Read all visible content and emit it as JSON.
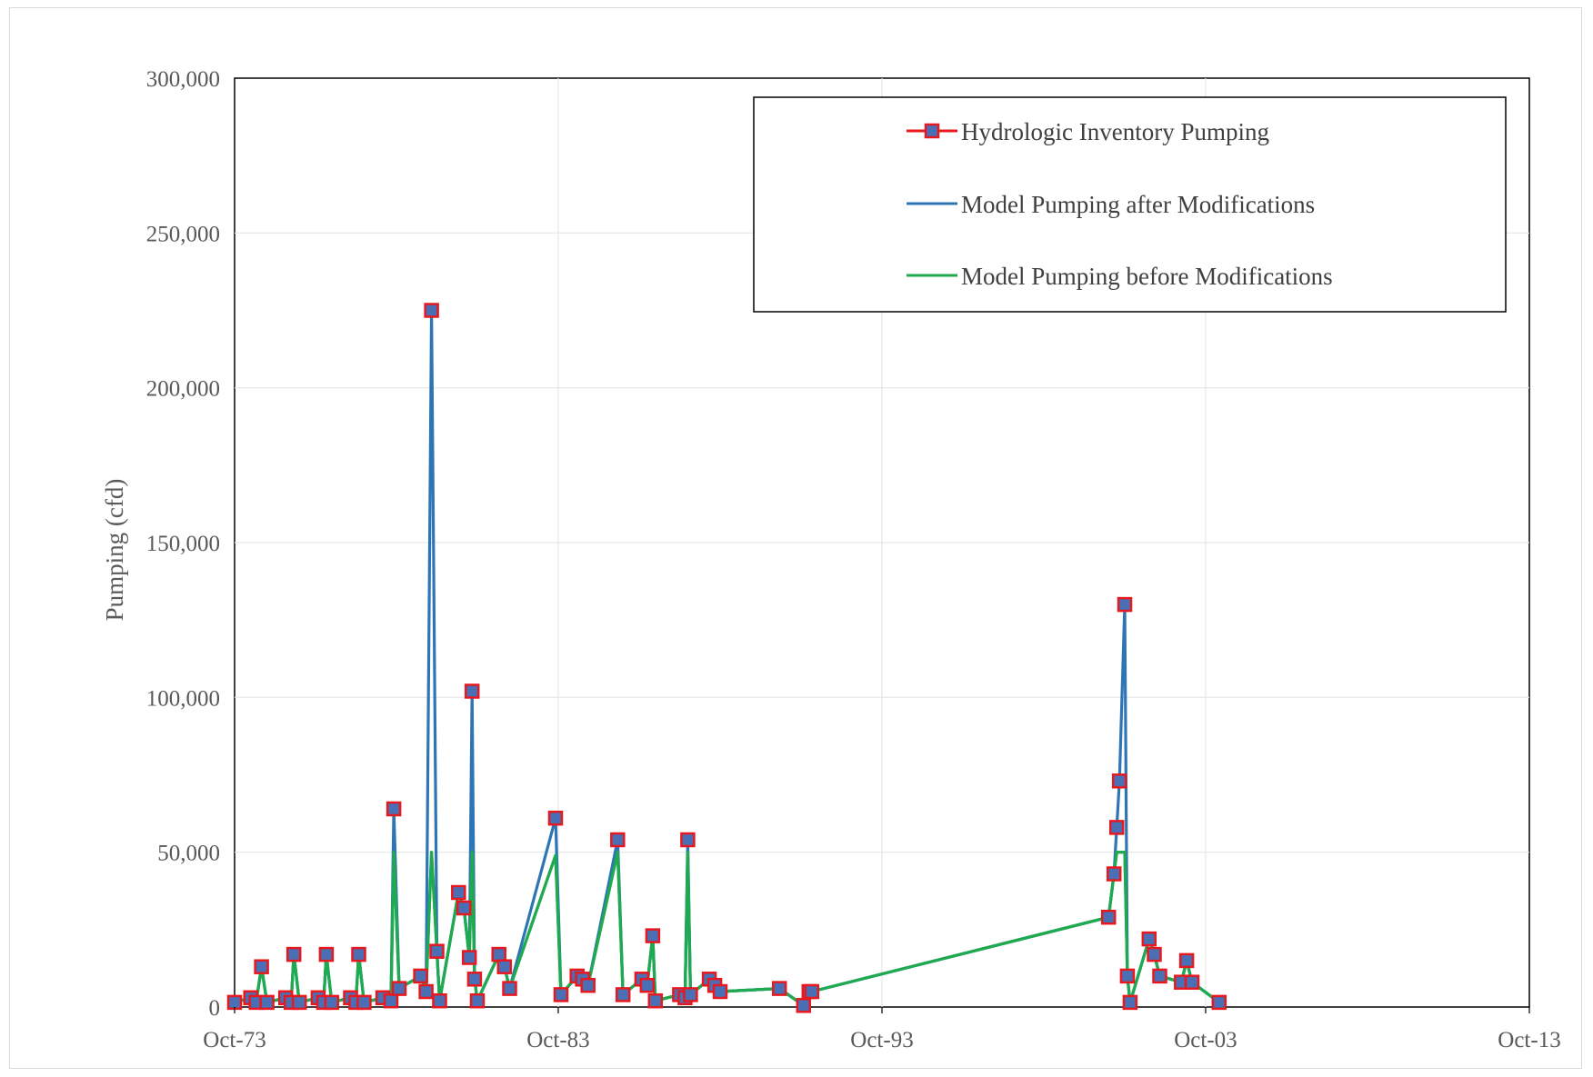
{
  "chart_data": {
    "type": "line",
    "title": "",
    "xlabel": "",
    "ylabel": "Pumping (cfd)",
    "xlim": [
      "1973-10-01",
      "2013-10-01"
    ],
    "ylim": [
      0,
      300000
    ],
    "x_tick_labels": [
      "Oct-73",
      "Oct-83",
      "Oct-93",
      "Oct-03",
      "Oct-13"
    ],
    "x_ticks": [
      "1973-10-01",
      "1983-10-01",
      "1993-10-01",
      "2003-10-01",
      "2013-10-01"
    ],
    "y_tick_labels": [
      "0",
      "50,000",
      "100,000",
      "150,000",
      "200,000",
      "250,000",
      "300,000"
    ],
    "y_ticks": [
      0,
      50000,
      100000,
      150000,
      200000,
      250000,
      300000
    ],
    "grid": true,
    "legend_position": "top-right",
    "series": [
      {
        "name": "Hydrologic Inventory Pumping",
        "color": "#4a6fb5",
        "marker_edge": "#e8191e",
        "marker": "square",
        "points": [
          [
            "1973-10-01",
            1500
          ],
          [
            "1974-04-01",
            3000
          ],
          [
            "1974-06-01",
            1500
          ],
          [
            "1974-08-01",
            13000
          ],
          [
            "1974-10-01",
            1500
          ],
          [
            "1975-05-01",
            3000
          ],
          [
            "1975-07-01",
            1500
          ],
          [
            "1975-08-01",
            17000
          ],
          [
            "1975-10-01",
            1500
          ],
          [
            "1976-05-01",
            3000
          ],
          [
            "1976-07-01",
            1500
          ],
          [
            "1976-08-01",
            17000
          ],
          [
            "1976-10-01",
            1500
          ],
          [
            "1977-05-01",
            3000
          ],
          [
            "1977-07-01",
            1500
          ],
          [
            "1977-08-01",
            17000
          ],
          [
            "1977-10-01",
            1500
          ],
          [
            "1978-05-01",
            3000
          ],
          [
            "1978-08-01",
            2000
          ],
          [
            "1978-09-01",
            64000
          ],
          [
            "1978-11-01",
            6000
          ],
          [
            "1979-07-01",
            10000
          ],
          [
            "1979-09-01",
            5000
          ],
          [
            "1979-11-01",
            225000
          ],
          [
            "1980-01-01",
            18000
          ],
          [
            "1980-02-01",
            2000
          ],
          [
            "1980-09-01",
            37000
          ],
          [
            "1980-11-01",
            32000
          ],
          [
            "1981-01-01",
            16000
          ],
          [
            "1981-02-01",
            102000
          ],
          [
            "1981-03-01",
            9000
          ],
          [
            "1981-04-01",
            2000
          ],
          [
            "1981-12-01",
            17000
          ],
          [
            "1982-02-01",
            13000
          ],
          [
            "1982-04-01",
            6000
          ],
          [
            "1983-09-01",
            61000
          ],
          [
            "1983-11-01",
            4000
          ],
          [
            "1984-05-01",
            10000
          ],
          [
            "1984-07-01",
            9000
          ],
          [
            "1984-09-01",
            7000
          ],
          [
            "1985-08-01",
            54000
          ],
          [
            "1985-10-01",
            4000
          ],
          [
            "1986-05-01",
            9000
          ],
          [
            "1986-07-01",
            7000
          ],
          [
            "1986-09-01",
            23000
          ],
          [
            "1986-10-01",
            2000
          ],
          [
            "1987-07-01",
            4000
          ],
          [
            "1987-09-01",
            3000
          ],
          [
            "1987-10-01",
            54000
          ],
          [
            "1987-11-01",
            4000
          ],
          [
            "1988-06-01",
            9000
          ],
          [
            "1988-08-01",
            7000
          ],
          [
            "1988-10-01",
            5000
          ],
          [
            "1990-08-01",
            6000
          ],
          [
            "1991-05-01",
            500
          ],
          [
            "1991-07-01",
            5000
          ],
          [
            "1991-08-01",
            5000
          ],
          [
            "2000-10-01",
            29000
          ],
          [
            "2000-12-01",
            43000
          ],
          [
            "2001-01-01",
            58000
          ],
          [
            "2001-02-01",
            73000
          ],
          [
            "2001-04-01",
            130000
          ],
          [
            "2001-05-01",
            10000
          ],
          [
            "2001-06-01",
            1500
          ],
          [
            "2002-01-01",
            22000
          ],
          [
            "2002-03-01",
            17000
          ],
          [
            "2002-05-01",
            10000
          ],
          [
            "2003-01-01",
            8000
          ],
          [
            "2003-03-01",
            15000
          ],
          [
            "2003-05-01",
            8000
          ],
          [
            "2004-03-01",
            1500
          ]
        ]
      },
      {
        "name": "Model Pumping after Modifications",
        "color": "#2e75b6",
        "points": [
          [
            "1973-10-01",
            1500
          ],
          [
            "1974-04-01",
            3000
          ],
          [
            "1974-06-01",
            1500
          ],
          [
            "1974-08-01",
            13000
          ],
          [
            "1974-10-01",
            1500
          ],
          [
            "1975-05-01",
            3000
          ],
          [
            "1975-07-01",
            1500
          ],
          [
            "1975-08-01",
            17000
          ],
          [
            "1975-10-01",
            1500
          ],
          [
            "1976-05-01",
            3000
          ],
          [
            "1976-07-01",
            1500
          ],
          [
            "1976-08-01",
            17000
          ],
          [
            "1976-10-01",
            1500
          ],
          [
            "1977-05-01",
            3000
          ],
          [
            "1977-07-01",
            1500
          ],
          [
            "1977-08-01",
            17000
          ],
          [
            "1977-10-01",
            1500
          ],
          [
            "1978-05-01",
            3000
          ],
          [
            "1978-08-01",
            2000
          ],
          [
            "1978-09-01",
            64000
          ],
          [
            "1978-11-01",
            6000
          ],
          [
            "1979-07-01",
            10000
          ],
          [
            "1979-09-01",
            5000
          ],
          [
            "1979-11-01",
            225000
          ],
          [
            "1980-01-01",
            18000
          ],
          [
            "1980-02-01",
            2000
          ],
          [
            "1980-09-01",
            37000
          ],
          [
            "1980-11-01",
            32000
          ],
          [
            "1981-01-01",
            16000
          ],
          [
            "1981-02-01",
            102000
          ],
          [
            "1981-03-01",
            9000
          ],
          [
            "1981-04-01",
            2000
          ],
          [
            "1981-12-01",
            17000
          ],
          [
            "1982-02-01",
            13000
          ],
          [
            "1982-04-01",
            6000
          ],
          [
            "1983-09-01",
            61000
          ],
          [
            "1983-11-01",
            4000
          ],
          [
            "1984-05-01",
            10000
          ],
          [
            "1984-07-01",
            9000
          ],
          [
            "1984-09-01",
            7000
          ],
          [
            "1985-08-01",
            54000
          ],
          [
            "1985-10-01",
            4000
          ],
          [
            "1986-05-01",
            9000
          ],
          [
            "1986-07-01",
            7000
          ],
          [
            "1986-09-01",
            23000
          ],
          [
            "1986-10-01",
            2000
          ],
          [
            "1987-07-01",
            4000
          ],
          [
            "1987-09-01",
            3000
          ],
          [
            "1987-10-01",
            54000
          ],
          [
            "1987-11-01",
            4000
          ],
          [
            "1988-06-01",
            9000
          ],
          [
            "1988-08-01",
            7000
          ],
          [
            "1988-10-01",
            5000
          ],
          [
            "1990-08-01",
            6000
          ],
          [
            "1991-05-01",
            500
          ],
          [
            "1991-07-01",
            5000
          ],
          [
            "1991-08-01",
            5000
          ],
          [
            "2000-10-01",
            29000
          ],
          [
            "2000-12-01",
            43000
          ],
          [
            "2001-01-01",
            58000
          ],
          [
            "2001-02-01",
            73000
          ],
          [
            "2001-04-01",
            130000
          ],
          [
            "2001-05-01",
            10000
          ],
          [
            "2001-06-01",
            1500
          ],
          [
            "2002-01-01",
            22000
          ],
          [
            "2002-03-01",
            17000
          ],
          [
            "2002-05-01",
            10000
          ],
          [
            "2003-01-01",
            8000
          ],
          [
            "2003-03-01",
            15000
          ],
          [
            "2003-05-01",
            8000
          ],
          [
            "2004-03-01",
            1500
          ]
        ]
      },
      {
        "name": "Model Pumping before Modifications",
        "color": "#1faa4f",
        "points": [
          [
            "1973-10-01",
            1500
          ],
          [
            "1974-04-01",
            3000
          ],
          [
            "1974-06-01",
            1500
          ],
          [
            "1974-08-01",
            13000
          ],
          [
            "1974-10-01",
            1500
          ],
          [
            "1975-05-01",
            3000
          ],
          [
            "1975-07-01",
            1500
          ],
          [
            "1975-08-01",
            17000
          ],
          [
            "1975-10-01",
            1500
          ],
          [
            "1976-05-01",
            3000
          ],
          [
            "1976-07-01",
            1500
          ],
          [
            "1976-08-01",
            17000
          ],
          [
            "1976-10-01",
            1500
          ],
          [
            "1977-05-01",
            3000
          ],
          [
            "1977-07-01",
            1500
          ],
          [
            "1977-08-01",
            17000
          ],
          [
            "1977-10-01",
            1500
          ],
          [
            "1978-05-01",
            3000
          ],
          [
            "1978-08-01",
            2000
          ],
          [
            "1978-09-01",
            50000
          ],
          [
            "1978-11-01",
            6000
          ],
          [
            "1979-07-01",
            10000
          ],
          [
            "1979-09-01",
            5000
          ],
          [
            "1979-11-01",
            50000
          ],
          [
            "1980-01-01",
            18000
          ],
          [
            "1980-02-01",
            2000
          ],
          [
            "1980-09-01",
            37000
          ],
          [
            "1980-11-01",
            32000
          ],
          [
            "1981-01-01",
            16000
          ],
          [
            "1981-02-01",
            50000
          ],
          [
            "1981-03-01",
            9000
          ],
          [
            "1981-04-01",
            2000
          ],
          [
            "1981-12-01",
            17000
          ],
          [
            "1982-02-01",
            13000
          ],
          [
            "1982-04-01",
            6000
          ],
          [
            "1983-09-01",
            49000
          ],
          [
            "1983-11-01",
            4000
          ],
          [
            "1984-05-01",
            10000
          ],
          [
            "1984-07-01",
            9000
          ],
          [
            "1984-09-01",
            7000
          ],
          [
            "1985-08-01",
            50000
          ],
          [
            "1985-10-01",
            4000
          ],
          [
            "1986-05-01",
            9000
          ],
          [
            "1986-07-01",
            7000
          ],
          [
            "1986-09-01",
            23000
          ],
          [
            "1986-10-01",
            2000
          ],
          [
            "1987-07-01",
            4000
          ],
          [
            "1987-09-01",
            3000
          ],
          [
            "1987-10-01",
            50000
          ],
          [
            "1987-11-01",
            4000
          ],
          [
            "1988-06-01",
            9000
          ],
          [
            "1988-08-01",
            7000
          ],
          [
            "1988-10-01",
            5000
          ],
          [
            "1990-08-01",
            6000
          ],
          [
            "1991-05-01",
            500
          ],
          [
            "1991-07-01",
            5000
          ],
          [
            "1991-08-01",
            5000
          ],
          [
            "2000-10-01",
            29000
          ],
          [
            "2000-12-01",
            43000
          ],
          [
            "2001-01-01",
            50000
          ],
          [
            "2001-02-01",
            50000
          ],
          [
            "2001-04-01",
            50000
          ],
          [
            "2001-05-01",
            10000
          ],
          [
            "2001-06-01",
            1500
          ],
          [
            "2002-01-01",
            22000
          ],
          [
            "2002-03-01",
            17000
          ],
          [
            "2002-05-01",
            10000
          ],
          [
            "2003-01-01",
            8000
          ],
          [
            "2003-03-01",
            15000
          ],
          [
            "2003-05-01",
            8000
          ],
          [
            "2004-03-01",
            1500
          ]
        ]
      }
    ]
  }
}
